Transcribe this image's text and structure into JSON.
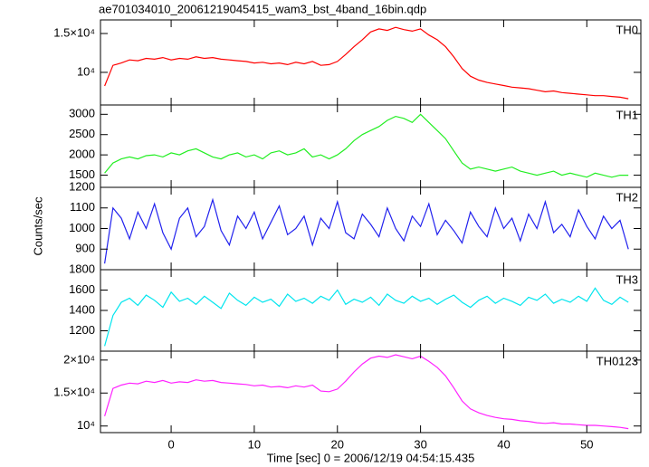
{
  "chart_data": [
    {
      "type": "line",
      "title": "ae701034010_20061219045415_wam3_bst_4band_16bin.qdp",
      "label": "TH0",
      "color": "#ff0000",
      "xlim": [
        -8.5,
        56.5
      ],
      "ylim": [
        5800,
        16750
      ],
      "yticks": [
        {
          "value": 10000,
          "label": "10⁴"
        },
        {
          "value": 15000,
          "label": "1.5×10⁴"
        }
      ],
      "x": [
        -8,
        -7,
        -6,
        -5,
        -4,
        -3,
        -2,
        -1,
        0,
        1,
        2,
        3,
        4,
        5,
        6,
        7,
        8,
        9,
        10,
        11,
        12,
        13,
        14,
        15,
        16,
        17,
        18,
        19,
        20,
        21,
        22,
        23,
        24,
        25,
        26,
        27,
        28,
        29,
        30,
        31,
        32,
        33,
        34,
        35,
        36,
        37,
        38,
        39,
        40,
        41,
        42,
        43,
        44,
        45,
        46,
        47,
        48,
        49,
        50,
        51,
        52,
        53,
        54,
        55
      ],
      "values": [
        8250,
        10900,
        11200,
        11600,
        11500,
        11800,
        11700,
        11900,
        11600,
        11800,
        11700,
        12000,
        11800,
        11900,
        11700,
        11600,
        11500,
        11400,
        11200,
        11300,
        11100,
        11200,
        11000,
        11300,
        11100,
        11400,
        10900,
        11000,
        11400,
        12300,
        13300,
        14200,
        15200,
        15600,
        15400,
        15800,
        15500,
        15300,
        15600,
        14800,
        14200,
        13300,
        12000,
        10500,
        9500,
        9000,
        8700,
        8500,
        8300,
        8100,
        8000,
        7900,
        7700,
        7500,
        7600,
        7400,
        7300,
        7200,
        7100,
        7000,
        7000,
        6900,
        6800,
        6600
      ]
    },
    {
      "type": "line",
      "label": "TH1",
      "color": "#22ee22",
      "xlim": [
        -8.5,
        56.5
      ],
      "ylim": [
        1200,
        3230
      ],
      "yticks": [
        1500,
        2000,
        2500,
        3000
      ],
      "x": [
        -8,
        -7,
        -6,
        -5,
        -4,
        -3,
        -2,
        -1,
        0,
        1,
        2,
        3,
        4,
        5,
        6,
        7,
        8,
        9,
        10,
        11,
        12,
        13,
        14,
        15,
        16,
        17,
        18,
        19,
        20,
        21,
        22,
        23,
        24,
        25,
        26,
        27,
        28,
        29,
        30,
        31,
        32,
        33,
        34,
        35,
        36,
        37,
        38,
        39,
        40,
        41,
        42,
        43,
        44,
        45,
        46,
        47,
        48,
        49,
        50,
        51,
        52,
        53,
        54,
        55
      ],
      "values": [
        1550,
        1800,
        1900,
        1950,
        1900,
        1980,
        2000,
        1950,
        2050,
        2000,
        2100,
        2150,
        2050,
        1950,
        1900,
        2000,
        2050,
        1950,
        2000,
        1900,
        2050,
        2100,
        2000,
        2050,
        2150,
        1950,
        2000,
        1900,
        2000,
        2150,
        2350,
        2500,
        2600,
        2700,
        2850,
        2950,
        2900,
        2800,
        3000,
        2800,
        2600,
        2400,
        2100,
        1800,
        1650,
        1700,
        1650,
        1600,
        1650,
        1700,
        1600,
        1550,
        1500,
        1550,
        1600,
        1500,
        1550,
        1500,
        1450,
        1550,
        1500,
        1450,
        1500,
        1500
      ]
    },
    {
      "type": "line",
      "label": "TH2",
      "color": "#2222ee",
      "y_label": "Counts/sec",
      "xlim": [
        -8.5,
        56.5
      ],
      "ylim": [
        800,
        1200
      ],
      "yticks": [
        900,
        1000,
        1100,
        1200
      ],
      "x": [
        -8,
        -7,
        -6,
        -5,
        -4,
        -3,
        -2,
        -1,
        0,
        1,
        2,
        3,
        4,
        5,
        6,
        7,
        8,
        9,
        10,
        11,
        12,
        13,
        14,
        15,
        16,
        17,
        18,
        19,
        20,
        21,
        22,
        23,
        24,
        25,
        26,
        27,
        28,
        29,
        30,
        31,
        32,
        33,
        34,
        35,
        36,
        37,
        38,
        39,
        40,
        41,
        42,
        43,
        44,
        45,
        46,
        47,
        48,
        49,
        50,
        51,
        52,
        53,
        54,
        55
      ],
      "values": [
        830,
        1100,
        1050,
        950,
        1080,
        1000,
        1120,
        980,
        900,
        1050,
        1100,
        960,
        1010,
        1140,
        990,
        920,
        1060,
        1000,
        1080,
        950,
        1030,
        1110,
        970,
        1000,
        1060,
        920,
        1050,
        1000,
        1130,
        980,
        950,
        1070,
        1020,
        960,
        1100,
        1000,
        940,
        1060,
        1010,
        1120,
        970,
        1040,
        990,
        930,
        1080,
        1010,
        960,
        1100,
        1000,
        1050,
        940,
        1070,
        1000,
        1130,
        980,
        1020,
        960,
        1090,
        1010,
        950,
        1060,
        1000,
        1040,
        900
      ]
    },
    {
      "type": "line",
      "label": "TH3",
      "color": "#00e5ee",
      "xlim": [
        -8.5,
        56.5
      ],
      "ylim": [
        1000,
        1800
      ],
      "yticks": [
        1200,
        1400,
        1600,
        1800
      ],
      "x": [
        -8,
        -7,
        -6,
        -5,
        -4,
        -3,
        -2,
        -1,
        0,
        1,
        2,
        3,
        4,
        5,
        6,
        7,
        8,
        9,
        10,
        11,
        12,
        13,
        14,
        15,
        16,
        17,
        18,
        19,
        20,
        21,
        22,
        23,
        24,
        25,
        26,
        27,
        28,
        29,
        30,
        31,
        32,
        33,
        34,
        35,
        36,
        37,
        38,
        39,
        40,
        41,
        42,
        43,
        44,
        45,
        46,
        47,
        48,
        49,
        50,
        51,
        52,
        53,
        54,
        55
      ],
      "values": [
        1050,
        1350,
        1480,
        1520,
        1450,
        1550,
        1500,
        1430,
        1580,
        1490,
        1520,
        1460,
        1540,
        1480,
        1420,
        1570,
        1500,
        1450,
        1530,
        1480,
        1510,
        1440,
        1560,
        1490,
        1520,
        1470,
        1540,
        1500,
        1600,
        1460,
        1510,
        1480,
        1530,
        1450,
        1560,
        1500,
        1470,
        1540,
        1490,
        1520,
        1460,
        1510,
        1550,
        1480,
        1430,
        1500,
        1540,
        1470,
        1520,
        1490,
        1450,
        1530,
        1500,
        1560,
        1470,
        1510,
        1480,
        1540,
        1490,
        1620,
        1500,
        1460,
        1530,
        1480
      ]
    },
    {
      "type": "line",
      "label": "TH0123",
      "color": "#ff22ff",
      "x_label": "Time [sec] 0 = 2006/12/19 04:54:15.435",
      "xlim": [
        -8.5,
        56.5
      ],
      "xticks": [
        0,
        10,
        20,
        30,
        40,
        50
      ],
      "ylim": [
        9000,
        21350
      ],
      "yticks": [
        {
          "value": 10000,
          "label": "10⁴"
        },
        {
          "value": 15000,
          "label": "1.5×10⁴"
        },
        {
          "value": 20000,
          "label": "2×10⁴"
        }
      ],
      "x": [
        -8,
        -7,
        -6,
        -5,
        -4,
        -3,
        -2,
        -1,
        0,
        1,
        2,
        3,
        4,
        5,
        6,
        7,
        8,
        9,
        10,
        11,
        12,
        13,
        14,
        15,
        16,
        17,
        18,
        19,
        20,
        21,
        22,
        23,
        24,
        25,
        26,
        27,
        28,
        29,
        30,
        31,
        32,
        33,
        34,
        35,
        36,
        37,
        38,
        39,
        40,
        41,
        42,
        43,
        44,
        45,
        46,
        47,
        48,
        49,
        50,
        51,
        52,
        53,
        54,
        55
      ],
      "values": [
        11500,
        15700,
        16200,
        16500,
        16400,
        16800,
        16600,
        16900,
        16500,
        16700,
        16600,
        17000,
        16800,
        16900,
        16600,
        16500,
        16400,
        16300,
        16100,
        16200,
        15900,
        16000,
        15800,
        16100,
        15900,
        16200,
        15300,
        15200,
        15600,
        16800,
        18200,
        19400,
        20300,
        20600,
        20400,
        20800,
        20500,
        20200,
        20600,
        19800,
        18900,
        17600,
        15800,
        13800,
        12600,
        12000,
        11600,
        11300,
        11100,
        11000,
        10800,
        10700,
        10500,
        10400,
        10500,
        10300,
        10300,
        10200,
        10100,
        10100,
        10000,
        9900,
        9800,
        9600
      ]
    }
  ]
}
